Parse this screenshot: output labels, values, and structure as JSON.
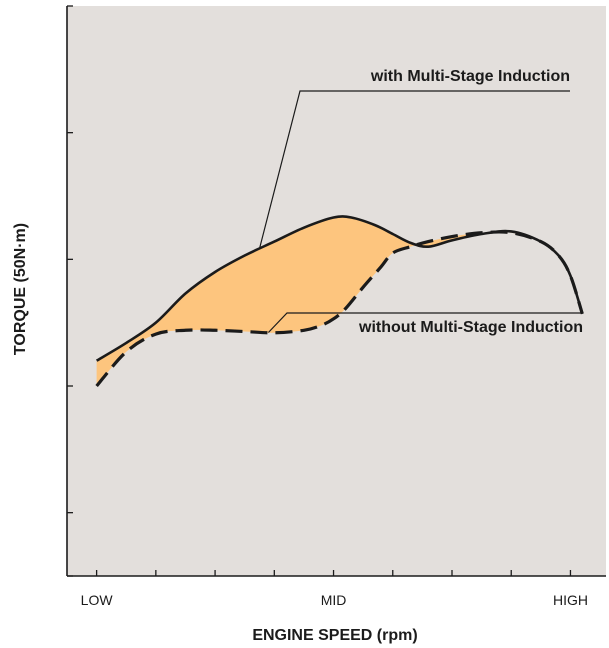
{
  "chart_data": {
    "type": "line",
    "xlabel": "ENGINE SPEED (rpm)",
    "ylabel": "TORQUE (50N·m)",
    "x_tick_labels": [
      "LOW",
      "MID",
      "HIGH"
    ],
    "x_tick_label_positions": [
      0,
      4,
      8
    ],
    "x_minor_ticks": [
      0,
      1,
      2,
      3,
      4,
      5,
      6,
      7,
      8
    ],
    "xlim": [
      -0.5,
      8.6
    ],
    "ylim": [
      0,
      4.5
    ],
    "y_ticks": [
      0,
      0.5,
      1.5,
      2.5,
      3.5,
      4.5
    ],
    "grid": false,
    "legend": "none",
    "colors": {
      "plot_background": "#e3dfdc",
      "gain_fill": "#fdc57e",
      "line": "#1b1b1b"
    },
    "series": [
      {
        "style": "solid",
        "x": [
          0,
          0.5,
          1,
          1.5,
          2,
          2.5,
          3,
          3.5,
          4,
          4.3,
          4.7,
          5,
          5.3,
          5.6,
          6,
          6.5,
          7,
          7.5,
          7.8,
          8,
          8.2
        ],
        "y": [
          1.7,
          1.84,
          2.0,
          2.23,
          2.4,
          2.53,
          2.64,
          2.75,
          2.83,
          2.83,
          2.77,
          2.7,
          2.63,
          2.6,
          2.65,
          2.7,
          2.72,
          2.64,
          2.53,
          2.37,
          2.07
        ]
      },
      {
        "style": "dashed",
        "x": [
          0,
          0.5,
          1,
          1.5,
          2,
          2.5,
          3,
          3.5,
          3.8,
          4,
          4.2,
          4.5,
          4.8,
          5,
          5.3,
          5.6,
          6,
          6.5,
          7,
          7.5,
          7.8,
          8,
          8.2
        ],
        "y": [
          1.5,
          1.77,
          1.91,
          1.94,
          1.94,
          1.93,
          1.92,
          1.94,
          1.98,
          2.03,
          2.11,
          2.28,
          2.44,
          2.55,
          2.6,
          2.64,
          2.68,
          2.71,
          2.71,
          2.64,
          2.53,
          2.37,
          2.07
        ]
      }
    ],
    "annotations": [
      {
        "text": "with Multi-Stage Induction",
        "target_series": 0,
        "target_x": 2.75
      },
      {
        "text": "without Multi-Stage Induction",
        "target_series": 1,
        "target_x": 2.9
      }
    ]
  }
}
